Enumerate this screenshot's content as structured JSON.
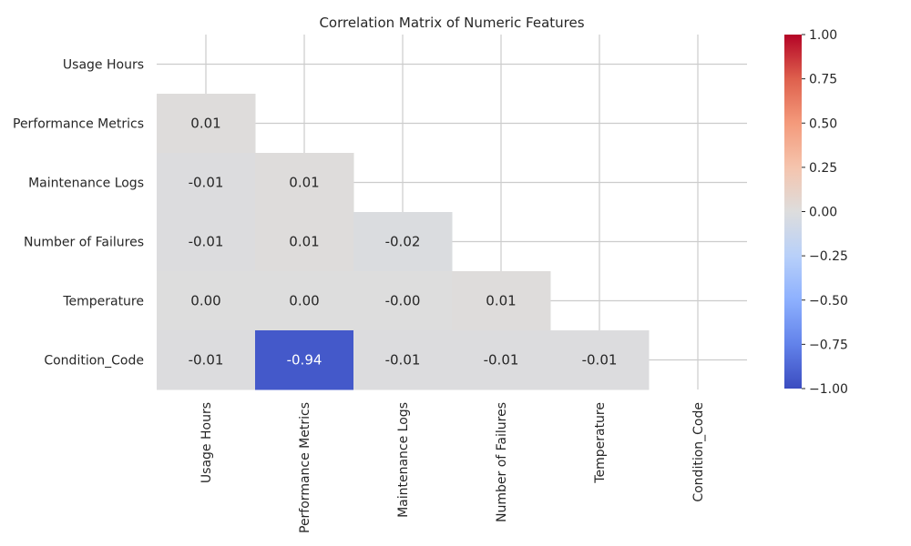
{
  "chart_data": {
    "type": "heatmap",
    "title": "Correlation Matrix of Numeric Features",
    "labels": [
      "Usage Hours",
      "Performance Metrics",
      "Maintenance Logs",
      "Number of Failures",
      "Temperature",
      "Condition_Code"
    ],
    "mask": "upper-triangle-including-diagonal",
    "values": [
      [
        null,
        null,
        null,
        null,
        null,
        null
      ],
      [
        0.01,
        null,
        null,
        null,
        null,
        null
      ],
      [
        -0.01,
        0.01,
        null,
        null,
        null,
        null
      ],
      [
        -0.01,
        0.01,
        -0.02,
        null,
        null,
        null
      ],
      [
        0.0,
        0.0,
        -0.0,
        0.01,
        null,
        null
      ],
      [
        -0.01,
        -0.94,
        -0.01,
        -0.01,
        -0.01,
        null
      ]
    ],
    "cell_text": [
      [
        null,
        null,
        null,
        null,
        null,
        null
      ],
      [
        "0.01",
        null,
        null,
        null,
        null,
        null
      ],
      [
        "-0.01",
        "0.01",
        null,
        null,
        null,
        null
      ],
      [
        "-0.01",
        "0.01",
        "-0.02",
        null,
        null,
        null
      ],
      [
        "0.00",
        "0.00",
        "-0.00",
        "0.01",
        null,
        null
      ],
      [
        "-0.01",
        "-0.94",
        "-0.01",
        "-0.01",
        "-0.01",
        null
      ]
    ],
    "colormap": "coolwarm",
    "vmin": -1.0,
    "vmax": 1.0,
    "colorbar_ticks": [
      1.0,
      0.75,
      0.5,
      0.25,
      0.0,
      -0.25,
      -0.5,
      -0.75,
      -1.0
    ],
    "colorbar_tick_labels": [
      "1.00",
      "0.75",
      "0.50",
      "0.25",
      "0.00",
      "−0.25",
      "−0.50",
      "−0.75",
      "−1.00"
    ],
    "grid": true
  }
}
